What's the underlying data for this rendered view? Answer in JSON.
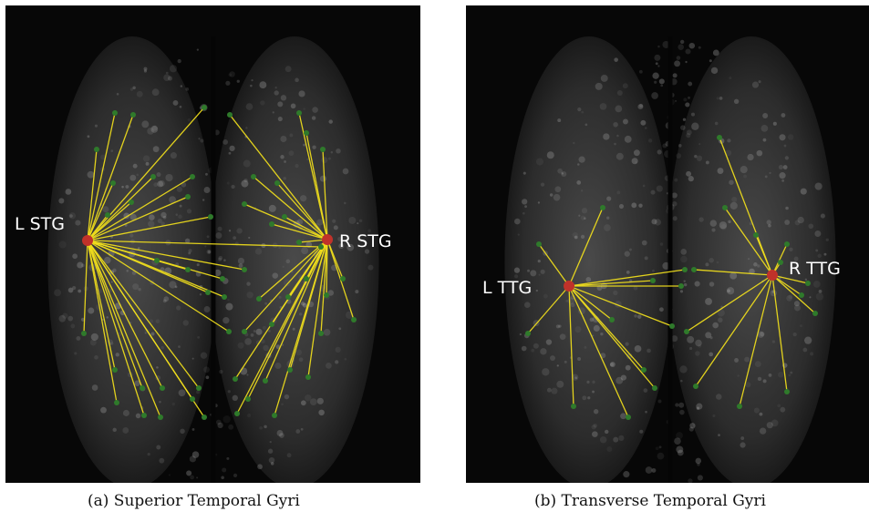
{
  "panels": [
    {
      "id": "a",
      "caption": "(a) Superior Temporal Gyri",
      "hubs": [
        {
          "name": "L STG",
          "label": "L STG"
        },
        {
          "name": "R STG",
          "label": "R STG"
        }
      ]
    },
    {
      "id": "b",
      "caption": "(b) Transverse Temporal Gyri",
      "hubs": [
        {
          "name": "L TTG",
          "label": "L TTG"
        },
        {
          "name": "R TTG",
          "label": "R TTG"
        }
      ]
    }
  ],
  "colors": {
    "background": "#070707",
    "brain": "#c9c9c9",
    "connection": "#f2e01c",
    "hub": "#c0322a",
    "peripheral_node": "#2f7a2b",
    "label": "#ffffff"
  }
}
